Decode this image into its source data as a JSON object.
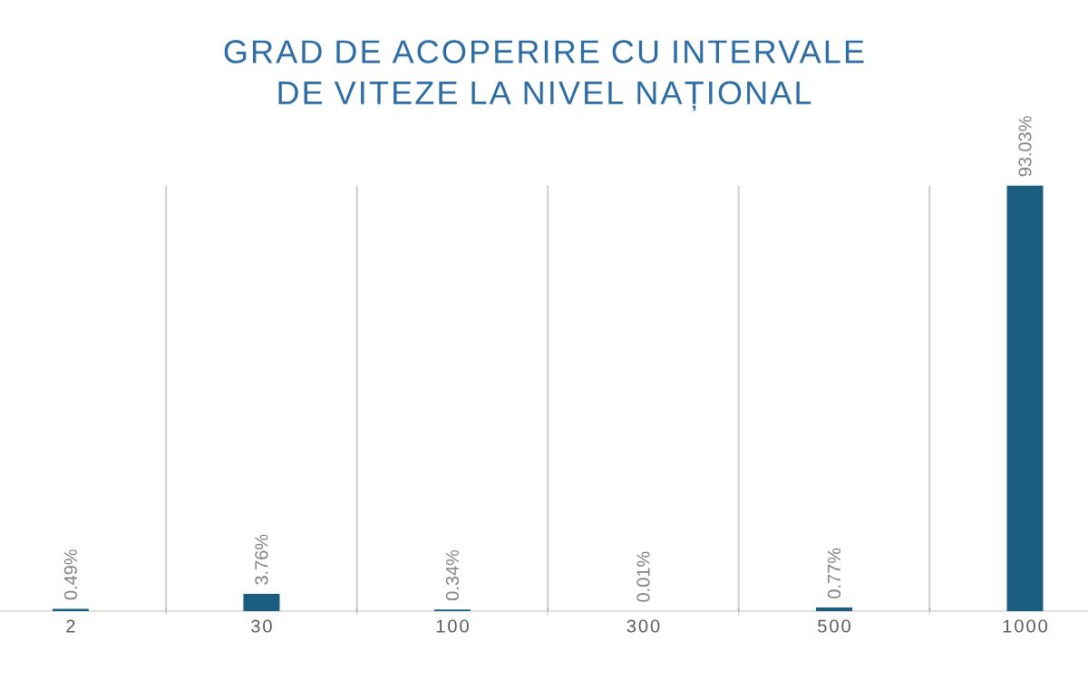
{
  "chart_data": {
    "type": "bar",
    "title": "GRAD DE ACOPERIRE CU INTERVALE DE VITEZE LA NIVEL NAȚIONAL",
    "categories": [
      "2",
      "30",
      "100",
      "300",
      "500",
      "1000"
    ],
    "values": [
      0.49,
      3.76,
      0.34,
      0.01,
      0.77,
      93.03
    ],
    "value_labels": [
      "0.49%",
      "3.76%",
      "0.34%",
      "0.01%",
      "0.77%",
      "93.03%"
    ],
    "color": "#1b5e80",
    "tick_labels": "x",
    "grid": "x"
  }
}
